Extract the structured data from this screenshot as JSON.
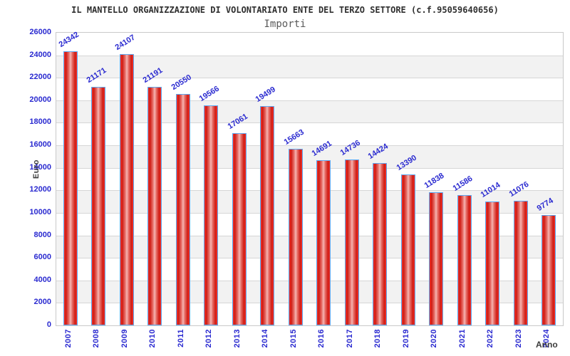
{
  "chart_data": {
    "type": "bar",
    "title": "IL MANTELLO ORGANIZZAZIONE DI VOLONTARIATO ENTE DEL TERZO SETTORE (c.f.95059640656)",
    "subtitle": "Importi",
    "xlabel": "Anno",
    "ylabel": "Euro",
    "categories": [
      "2007",
      "2008",
      "2009",
      "2010",
      "2011",
      "2012",
      "2013",
      "2014",
      "2015",
      "2016",
      "2017",
      "2018",
      "2019",
      "2020",
      "2021",
      "2022",
      "2023",
      "2024"
    ],
    "values": [
      24342,
      21171,
      24107,
      21191,
      20550,
      19566,
      17061,
      19499,
      15663,
      14691,
      14736,
      14424,
      13390,
      11838,
      11586,
      11014,
      11076,
      9774
    ],
    "ylim": [
      0,
      26000
    ],
    "ytick_step": 2000,
    "y_ticks": [
      26000,
      24000,
      22000,
      20000,
      18000,
      16000,
      14000,
      12000,
      10000,
      8000,
      6000,
      4000,
      2000,
      0
    ],
    "grid": true,
    "legend_position": "none",
    "value_labels_rotated": true,
    "colors": {
      "bar_fill": "#e02318",
      "bar_fill_highlight": "#f6b6b3",
      "bar_border": "#5da9f2",
      "tick_text": "#2a2ad0",
      "value_text": "#2a2ad0",
      "axis_title_text": "#3c3c3c",
      "band_alt": "#f2f2f2",
      "band_main": "#ffffff",
      "gridline": "#d6d6d6",
      "plot_border": "#c9c9c9",
      "title_text": "#2f2f2f",
      "subtitle_text": "#5a5a5a"
    }
  }
}
